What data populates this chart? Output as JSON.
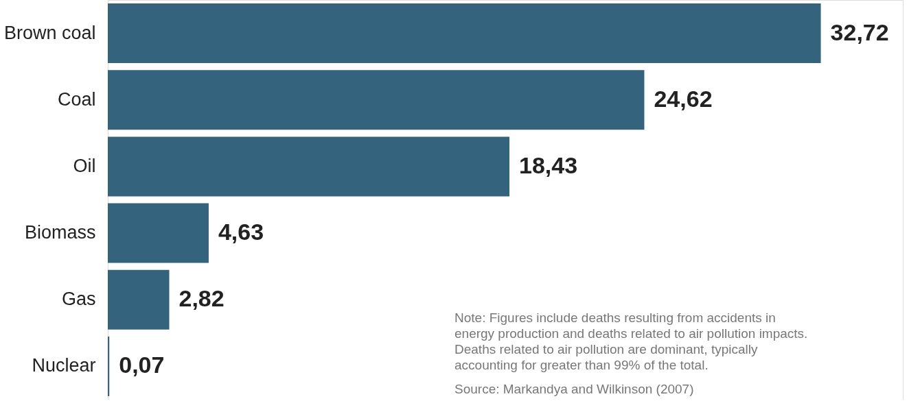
{
  "chart_data": {
    "type": "bar",
    "orientation": "horizontal",
    "categories": [
      "Brown coal",
      "Coal",
      "Oil",
      "Biomass",
      "Gas",
      "Nuclear"
    ],
    "values": [
      32.72,
      24.62,
      18.43,
      4.63,
      2.82,
      0.07
    ],
    "value_labels": [
      "32,72",
      "24,62",
      "18,43",
      "4,63",
      "2,82",
      "0,07"
    ],
    "color": "#33637d",
    "annotations": [
      "Note: Figures include deaths resulting from accidents in energy production and deaths related to air pollution impacts. Deaths related to air pollution are dominant, typically accounting for greater than 99% of the total.",
      "Source: Markandya and Wilkinson (2007)"
    ]
  }
}
